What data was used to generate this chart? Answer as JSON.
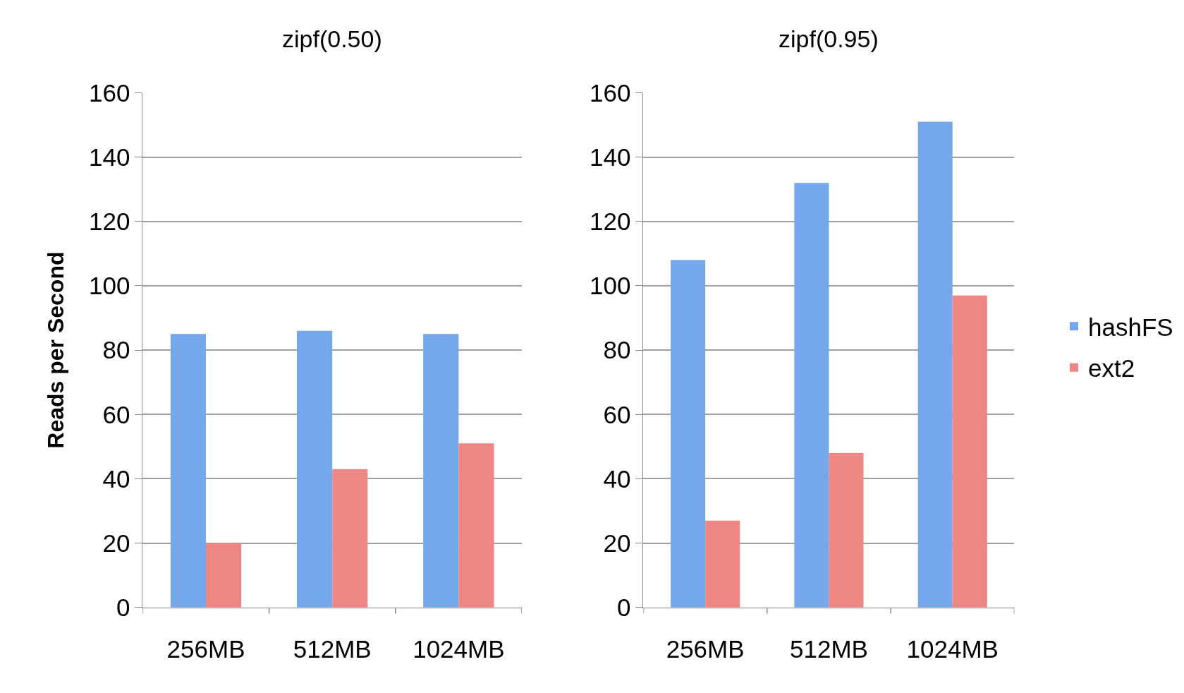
{
  "chart_data": [
    {
      "type": "bar",
      "title": "zipf(0.50)",
      "ylabel": "Reads per Second",
      "categories": [
        "256MB",
        "512MB",
        "1024MB"
      ],
      "ylim": [
        0,
        160
      ],
      "yticks": [
        0,
        20,
        40,
        60,
        80,
        100,
        120,
        140,
        160
      ],
      "grid": "y",
      "series": [
        {
          "color": "#74a8ea",
          "values": [
            85,
            86,
            85
          ]
        },
        {
          "color": "#ee8784",
          "values": [
            20,
            43,
            51
          ]
        }
      ]
    },
    {
      "type": "bar",
      "title": "zipf(0.95)",
      "categories": [
        "256MB",
        "512MB",
        "1024MB"
      ],
      "ylim": [
        0,
        160
      ],
      "yticks": [
        0,
        20,
        40,
        60,
        80,
        100,
        120,
        140,
        160
      ],
      "grid": "y",
      "legend": "right",
      "series": [
        {
          "name": "hashFS",
          "color": "#74a8ea",
          "values": [
            108,
            132,
            151
          ]
        },
        {
          "name": "ext2",
          "color": "#ee8784",
          "values": [
            27,
            48,
            97
          ]
        }
      ]
    }
  ]
}
